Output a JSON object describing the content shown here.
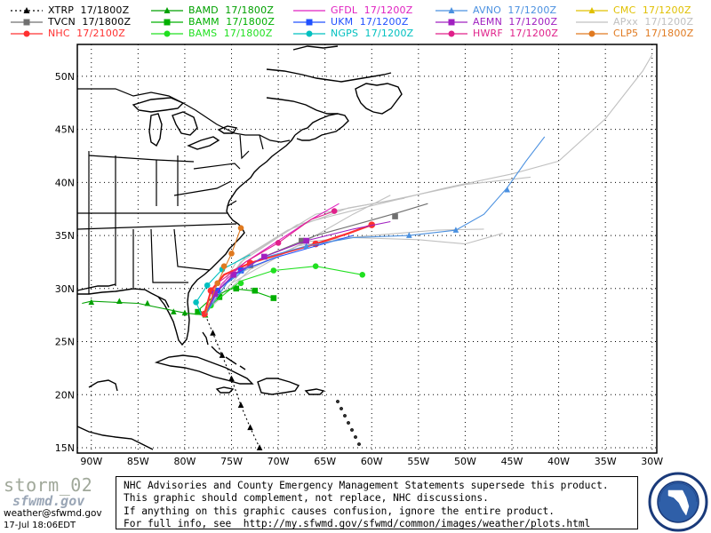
{
  "legend": [
    {
      "model": "XTRP",
      "time": "17/1800Z",
      "color": "#000000",
      "marker": "triangle",
      "dash": true
    },
    {
      "model": "TVCN",
      "time": "17/1800Z",
      "color": "#707070",
      "marker": "square",
      "dash": false
    },
    {
      "model": "NHC",
      "time": "17/2100Z",
      "color": "#ff3030",
      "marker": "circle",
      "dash": false
    },
    {
      "model": "BAMD",
      "time": "17/1800Z",
      "color": "#00a000",
      "marker": "triangle",
      "dash": false
    },
    {
      "model": "BAMM",
      "time": "17/1800Z",
      "color": "#00b000",
      "marker": "square",
      "dash": false
    },
    {
      "model": "BAMS",
      "time": "17/1800Z",
      "color": "#20e020",
      "marker": "circle",
      "dash": false
    },
    {
      "model": "GFDL",
      "time": "17/1200Z",
      "color": "#e020c0",
      "marker": "none",
      "dash": false
    },
    {
      "model": "UKM",
      "time": "17/1200Z",
      "color": "#2050ff",
      "marker": "square",
      "dash": false
    },
    {
      "model": "NGPS",
      "time": "17/1200Z",
      "color": "#00c0c0",
      "marker": "circle",
      "dash": false
    },
    {
      "model": "AVNO",
      "time": "17/1200Z",
      "color": "#4a90e0",
      "marker": "triangle",
      "dash": false
    },
    {
      "model": "AEMN",
      "time": "17/1200Z",
      "color": "#a020c0",
      "marker": "square",
      "dash": false
    },
    {
      "model": "HWRF",
      "time": "17/1200Z",
      "color": "#e0208a",
      "marker": "circle",
      "dash": false
    },
    {
      "model": "CMC",
      "time": "17/1200Z",
      "color": "#e0c000",
      "marker": "triangle",
      "dash": false
    },
    {
      "model": "APxx",
      "time": "17/1200Z",
      "color": "#c0c0c0",
      "marker": "none",
      "dash": false
    },
    {
      "model": "CLP5",
      "time": "17/1800Z",
      "color": "#e07a20",
      "marker": "circle",
      "dash": false
    }
  ],
  "axes": {
    "lon_labels": [
      "90W",
      "85W",
      "80W",
      "75W",
      "70W",
      "65W",
      "60W",
      "55W",
      "50W",
      "45W",
      "40W",
      "35W",
      "30W"
    ],
    "lat_labels": [
      "50N",
      "45N",
      "40N",
      "35N",
      "30N",
      "25N",
      "20N",
      "15N"
    ],
    "lon_values": [
      -90,
      -85,
      -80,
      -75,
      -70,
      -65,
      -60,
      -55,
      -50,
      -45,
      -40,
      -35,
      -30
    ],
    "lat_values": [
      50,
      45,
      40,
      35,
      30,
      25,
      20,
      15
    ],
    "lon_range": [
      -91.5,
      -29.5
    ],
    "lat_range": [
      14.5,
      53
    ]
  },
  "tracks": [
    {
      "model": "BAMD",
      "points": [
        [
          -77.8,
          27.5
        ],
        [
          -80.0,
          27.7
        ],
        [
          -85.0,
          28.6
        ],
        [
          -90.0,
          28.8
        ],
        [
          -91.0,
          28.6
        ]
      ],
      "marker_points": [
        [
          -77.8,
          27.5
        ],
        [
          -80.0,
          27.7
        ],
        [
          -81.2,
          27.8
        ],
        [
          -84.0,
          28.6
        ],
        [
          -87.0,
          28.8
        ],
        [
          -90.0,
          28.7
        ]
      ]
    },
    {
      "model": "BAMM",
      "points": [
        [
          -77.8,
          27.5
        ],
        [
          -78.5,
          28.0
        ],
        [
          -77.0,
          29.2
        ],
        [
          -75.0,
          30.0
        ],
        [
          -72.8,
          29.8
        ],
        [
          -70.5,
          29.1
        ]
      ],
      "marker_points": [
        [
          -78.6,
          27.8
        ],
        [
          -76.3,
          29.2
        ],
        [
          -74.5,
          30.0
        ],
        [
          -72.5,
          29.8
        ],
        [
          -70.5,
          29.1
        ]
      ]
    },
    {
      "model": "BAMS",
      "points": [
        [
          -77.8,
          27.5
        ],
        [
          -77.0,
          28.6
        ],
        [
          -74.0,
          30.7
        ],
        [
          -70.5,
          31.7
        ],
        [
          -66.0,
          32.1
        ],
        [
          -61.0,
          31.3
        ]
      ],
      "marker_points": [
        [
          -77.2,
          28.4
        ],
        [
          -74.0,
          30.5
        ],
        [
          -70.5,
          31.7
        ],
        [
          -66.0,
          32.1
        ],
        [
          -61.0,
          31.3
        ]
      ]
    },
    {
      "model": "XTRP",
      "points": [
        [
          -77.8,
          27.5
        ],
        [
          -77.0,
          25.8
        ],
        [
          -76.0,
          23.7
        ],
        [
          -75.0,
          21.5
        ],
        [
          -74.0,
          19.0
        ],
        [
          -73.0,
          16.9
        ],
        [
          -72.0,
          15.0
        ]
      ],
      "marker_points": [
        [
          -77.0,
          25.8
        ],
        [
          -76.0,
          23.7
        ],
        [
          -75.0,
          21.5
        ],
        [
          -74.0,
          19.0
        ],
        [
          -73.0,
          16.9
        ],
        [
          -72.0,
          15.0
        ]
      ]
    },
    {
      "model": "TVCN",
      "points": [
        [
          -77.8,
          27.5
        ],
        [
          -76.8,
          29.5
        ],
        [
          -74.5,
          31.5
        ],
        [
          -71.0,
          33.2
        ],
        [
          -66.0,
          35.0
        ],
        [
          -61.0,
          36.2
        ],
        [
          -57.0,
          37.2
        ],
        [
          -54.0,
          38.0
        ]
      ],
      "marker_points": [
        [
          -76.8,
          29.5
        ],
        [
          -73.0,
          32.2
        ],
        [
          -67.5,
          34.5
        ],
        [
          -57.5,
          36.8
        ]
      ]
    },
    {
      "model": "NHC",
      "points": [
        [
          -77.9,
          27.6
        ],
        [
          -77.2,
          29.8
        ],
        [
          -75.8,
          31.3
        ],
        [
          -73.0,
          32.4
        ],
        [
          -70.0,
          33.2
        ],
        [
          -66.0,
          34.2
        ],
        [
          -62.5,
          35.2
        ],
        [
          -60.0,
          36.0
        ]
      ],
      "marker_points": [
        [
          -77.9,
          27.6
        ],
        [
          -77.2,
          29.8
        ],
        [
          -73.0,
          32.4
        ],
        [
          -66.0,
          34.2
        ],
        [
          -60.0,
          36.0
        ]
      ]
    },
    {
      "model": "GFDL",
      "points": [
        [
          -77.8,
          27.6
        ],
        [
          -76.0,
          30.5
        ],
        [
          -73.5,
          32.5
        ],
        [
          -70.0,
          34.5
        ],
        [
          -66.5,
          36.5
        ],
        [
          -63.5,
          38.0
        ]
      ],
      "marker_points": []
    },
    {
      "model": "UKM",
      "points": [
        [
          -77.8,
          27.6
        ],
        [
          -76.5,
          29.8
        ],
        [
          -74.0,
          31.7
        ],
        [
          -70.0,
          33.0
        ],
        [
          -66.0,
          34.0
        ],
        [
          -62.0,
          35.0
        ]
      ],
      "marker_points": [
        [
          -76.5,
          29.8
        ],
        [
          -74.0,
          31.7
        ]
      ]
    },
    {
      "model": "NGPS",
      "points": [
        [
          -78.2,
          27.5
        ],
        [
          -78.8,
          28.7
        ],
        [
          -77.6,
          30.3
        ],
        [
          -76.0,
          31.8
        ],
        [
          -73.0,
          33.2
        ]
      ],
      "marker_points": [
        [
          -78.8,
          28.7
        ],
        [
          -77.6,
          30.3
        ],
        [
          -76.0,
          31.8
        ]
      ]
    },
    {
      "model": "AVNO",
      "points": [
        [
          -77.8,
          27.6
        ],
        [
          -75.5,
          30.5
        ],
        [
          -72.0,
          32.8
        ],
        [
          -67.0,
          34.0
        ],
        [
          -62.0,
          34.8
        ],
        [
          -56.0,
          35.0
        ],
        [
          -51.0,
          35.5
        ],
        [
          -48.0,
          37.0
        ],
        [
          -45.5,
          39.5
        ],
        [
          -43.5,
          42.0
        ],
        [
          -41.5,
          44.3
        ]
      ],
      "marker_points": [
        [
          -67.0,
          34.0
        ],
        [
          -56.0,
          35.0
        ],
        [
          -51.0,
          35.5
        ],
        [
          -45.5,
          39.3
        ]
      ]
    },
    {
      "model": "AEMN",
      "points": [
        [
          -77.8,
          27.6
        ],
        [
          -76.8,
          29.5
        ],
        [
          -74.8,
          31.3
        ],
        [
          -71.5,
          33.0
        ],
        [
          -67.0,
          34.5
        ],
        [
          -62.0,
          35.6
        ],
        [
          -58.0,
          36.3
        ]
      ],
      "marker_points": [
        [
          -76.8,
          29.5
        ],
        [
          -74.8,
          31.3
        ],
        [
          -71.5,
          33.0
        ],
        [
          -67.0,
          34.5
        ]
      ]
    },
    {
      "model": "HWRF",
      "points": [
        [
          -77.8,
          27.6
        ],
        [
          -76.5,
          30.5
        ],
        [
          -73.5,
          32.5
        ],
        [
          -70.0,
          34.3
        ],
        [
          -66.5,
          36.5
        ],
        [
          -64.0,
          37.3
        ]
      ],
      "marker_points": [
        [
          -76.5,
          30.5
        ],
        [
          -70.0,
          34.3
        ],
        [
          -64.0,
          37.3
        ]
      ]
    },
    {
      "model": "CLP5",
      "points": [
        [
          -77.8,
          27.6
        ],
        [
          -76.5,
          30.5
        ],
        [
          -75.0,
          33.3
        ],
        [
          -74.0,
          35.7
        ]
      ],
      "marker_points": [
        [
          -76.5,
          30.5
        ],
        [
          -75.8,
          32.1
        ],
        [
          -75.0,
          33.3
        ],
        [
          -74.0,
          35.7
        ]
      ]
    },
    {
      "model": "APxx",
      "points": [
        [
          -77.5,
          28.0
        ],
        [
          -74.0,
          32.5
        ],
        [
          -68.0,
          36.0
        ],
        [
          -60.0,
          37.8
        ],
        [
          -52.0,
          39.5
        ],
        [
          -45.0,
          40.8
        ],
        [
          -40.0,
          42.0
        ],
        [
          -35.0,
          46.0
        ],
        [
          -31.0,
          50.5
        ],
        [
          -30.0,
          52.0
        ]
      ],
      "marker_points": []
    },
    {
      "model": "APxx",
      "points": [
        [
          -77.5,
          28.0
        ],
        [
          -73.5,
          33.0
        ],
        [
          -66.0,
          37.0
        ],
        [
          -58.0,
          38.3
        ],
        [
          -50.0,
          39.8
        ],
        [
          -43.0,
          40.5
        ]
      ],
      "marker_points": []
    },
    {
      "model": "APxx",
      "points": [
        [
          -77.5,
          28.0
        ],
        [
          -74.5,
          32.5
        ],
        [
          -69.0,
          35.5
        ],
        [
          -62.5,
          37.6
        ],
        [
          -56.5,
          38.5
        ]
      ],
      "marker_points": []
    },
    {
      "model": "APxx",
      "points": [
        [
          -77.5,
          28.0
        ],
        [
          -73.0,
          31.8
        ],
        [
          -67.0,
          34.4
        ],
        [
          -60.0,
          35.0
        ],
        [
          -53.0,
          35.5
        ],
        [
          -48.0,
          35.6
        ]
      ],
      "marker_points": []
    },
    {
      "model": "APxx",
      "points": [
        [
          -77.5,
          28.0
        ],
        [
          -75.0,
          30.5
        ],
        [
          -71.0,
          32.5
        ],
        [
          -66.0,
          35.0
        ],
        [
          -62.0,
          37.0
        ],
        [
          -58.0,
          38.8
        ]
      ],
      "marker_points": []
    },
    {
      "model": "APxx",
      "points": [
        [
          -77.5,
          28.0
        ],
        [
          -74.0,
          31.5
        ],
        [
          -68.0,
          34.0
        ],
        [
          -62.0,
          34.8
        ],
        [
          -55.0,
          34.6
        ],
        [
          -50.0,
          34.2
        ],
        [
          -46.0,
          35.2
        ]
      ],
      "marker_points": []
    }
  ],
  "disclaimer": [
    "NHC Advisories and County Emergency Management Statements supersede this product.",
    "This graphic should complement, not replace, NHC discussions.",
    "If anything on this graphic causes confusion, ignore the entire product.",
    "For full info, see  http://my.sfwmd.gov/sfwmd/common/images/weather/plots.html"
  ],
  "footer": {
    "storm": "storm_02",
    "logo_text": "sfwmd.gov",
    "email": "weather@sfwmd.gov",
    "timestamp": "17-Jul 18:06EDT"
  }
}
